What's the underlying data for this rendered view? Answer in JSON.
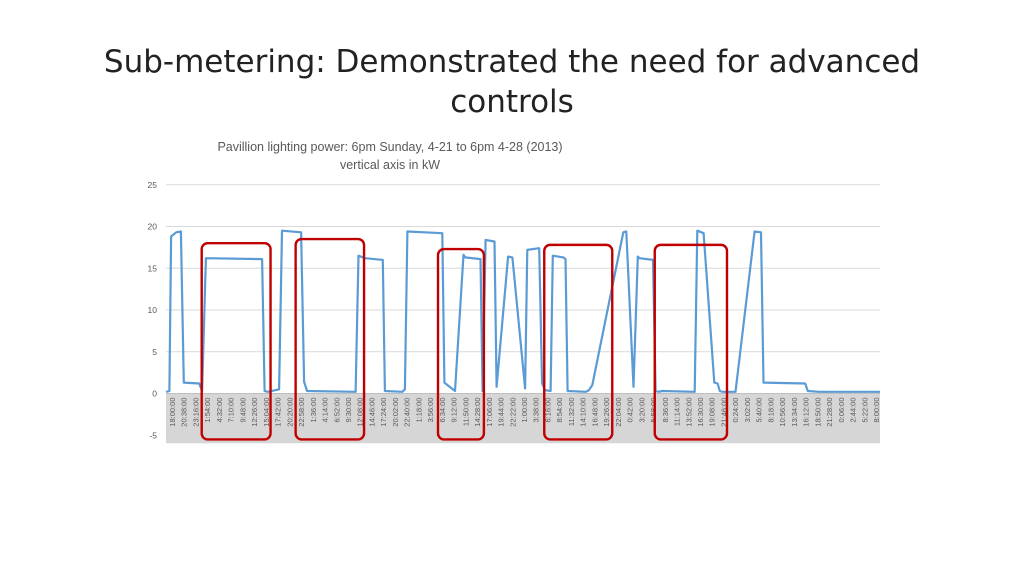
{
  "slide": {
    "title_line1": "Sub-metering: Demonstrated the need for advanced",
    "title_line2": "controls"
  },
  "colors": {
    "series": "#5b9bd5",
    "highlight": "#c00000",
    "grid": "#d9d9d9",
    "xaxis_band": "#d6d6d6",
    "axis_text": "#595959"
  },
  "chart_data": {
    "type": "line",
    "title": "Pavillion lighting power: 6pm Sunday, 4-21 to 6pm 4-28 (2013)",
    "subtitle": "vertical axis in kW",
    "ylim": [
      -5,
      25
    ],
    "yticks": [
      -5,
      0,
      5,
      10,
      15,
      20,
      25
    ],
    "grid": true,
    "xlim": [
      0,
      168
    ],
    "xtick_labels": [
      "18:00:00",
      "20:38:00",
      "23:16:00",
      "1:54:00",
      "4:32:00",
      "7:10:00",
      "9:48:00",
      "12:26:00",
      "15:04:00",
      "17:42:00",
      "20:20:00",
      "22:58:00",
      "1:36:00",
      "4:14:00",
      "6:52:00",
      "9:30:00",
      "12:08:00",
      "14:46:00",
      "17:24:00",
      "20:02:00",
      "22:40:00",
      "1:18:00",
      "3:56:00",
      "6:34:00",
      "9:12:00",
      "11:50:00",
      "14:28:00",
      "17:06:00",
      "19:44:00",
      "22:22:00",
      "1:00:00",
      "3:38:00",
      "6:16:00",
      "8:54:00",
      "11:32:00",
      "14:10:00",
      "16:48:00",
      "19:26:00",
      "22:04:00",
      "0:42:00",
      "3:20:00",
      "5:58:00",
      "8:36:00",
      "11:14:00",
      "13:52:00",
      "16:30:00",
      "19:08:00",
      "21:46:00",
      "0:24:00",
      "3:02:00",
      "5:40:00",
      "8:18:00",
      "10:56:00",
      "13:34:00",
      "16:12:00",
      "18:50:00",
      "21:28:00",
      "0:06:00",
      "2:44:00",
      "5:22:00",
      "8:00:00"
    ],
    "series": [
      {
        "x": [
          0,
          0.8,
          1.2,
          2.4,
          3.5,
          4.2,
          7.8,
          8.5,
          9.4,
          22.6,
          23.2,
          24.0,
          26.6,
          27.3,
          31.8,
          32.5,
          33.2,
          44.6,
          45.3,
          46.8,
          51.0,
          51.5,
          55.6,
          56.2,
          56.8,
          65.0,
          65.5,
          68.0,
          70.0,
          70.4,
          74.0,
          74.5,
          75.2,
          77.3,
          77.8,
          80.5,
          81.5,
          84.5,
          85.0,
          87.8,
          88.5,
          89.2,
          90.5,
          91.0,
          93.5,
          94.0,
          94.5,
          98.8,
          99.5,
          100.3,
          107.6,
          108.3,
          110.0,
          111.0,
          111.4,
          114.6,
          115.2,
          116.0,
          116.7,
          124.4,
          125.0,
          126.5,
          129.0,
          129.8,
          130.3,
          131.0,
          133.5,
          134.0,
          138.5,
          140.0,
          140.6,
          150.4,
          151.0,
          153.5,
          153.9,
          157.5,
          158.0,
          164.5,
          165.0,
          168.0
        ],
        "y": [
          0.2,
          0.3,
          18.8,
          19.3,
          19.4,
          1.3,
          1.2,
          0.3,
          16.2,
          16.1,
          0.3,
          0.2,
          0.5,
          19.5,
          19.3,
          1.4,
          0.3,
          0.2,
          16.5,
          16.2,
          16.0,
          0.3,
          0.2,
          0.5,
          19.4,
          19.2,
          1.3,
          0.3,
          16.6,
          16.3,
          16.1,
          0.3,
          18.4,
          18.2,
          0.8,
          16.4,
          16.3,
          0.6,
          17.2,
          17.4,
          1.2,
          0.4,
          0.3,
          16.5,
          16.3,
          16.1,
          0.3,
          0.2,
          0.4,
          1.0,
          19.3,
          19.4,
          0.8,
          16.4,
          16.2,
          16.0,
          0.3,
          0.2,
          0.3,
          0.2,
          19.5,
          19.2,
          1.3,
          1.2,
          0.3,
          0.2,
          0.2,
          0.2,
          19.4,
          19.3,
          1.3,
          1.2,
          0.3,
          0.2,
          0.2,
          0.2,
          0.2,
          0.2,
          0.2,
          0.2
        ]
      }
    ],
    "highlight_boxes": [
      {
        "x_start": 8.4,
        "x_end": 24.6,
        "y_low": -5.5,
        "y_high": 18.0
      },
      {
        "x_start": 30.5,
        "x_end": 46.6,
        "y_low": -5.5,
        "y_high": 18.5
      },
      {
        "x_start": 64.0,
        "x_end": 74.8,
        "y_low": -5.5,
        "y_high": 17.3
      },
      {
        "x_start": 89.0,
        "x_end": 105.0,
        "y_low": -5.5,
        "y_high": 17.8
      },
      {
        "x_start": 115.0,
        "x_end": 132.0,
        "y_low": -5.5,
        "y_high": 17.8
      }
    ]
  }
}
